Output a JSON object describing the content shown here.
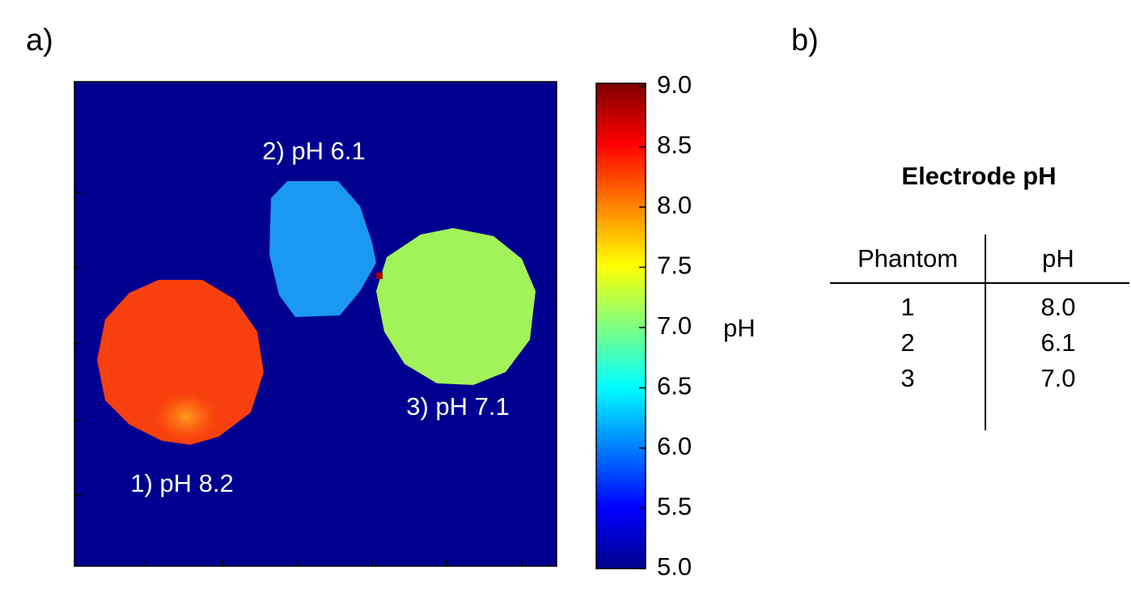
{
  "panel_a": {
    "label": "a)",
    "annotations": [
      "1) pH 8.2",
      "2) pH 6.1",
      "3) pH 7.1"
    ],
    "colorbar": {
      "label": "pH",
      "lim": [
        5,
        9
      ],
      "ticks": [
        {
          "value": 5,
          "label": "5.0"
        },
        {
          "value": 5.5,
          "label": "5.5"
        },
        {
          "value": 6,
          "label": "6.0"
        },
        {
          "value": 6.5,
          "label": "6.5"
        },
        {
          "value": 7,
          "label": "7.0"
        },
        {
          "value": 7.5,
          "label": "7.5"
        },
        {
          "value": 8,
          "label": "8.0"
        },
        {
          "value": 8.5,
          "label": "8.5"
        },
        {
          "value": 9,
          "label": "9.0"
        }
      ]
    }
  },
  "panel_b": {
    "label": "b)",
    "title": "Electrode pH",
    "table": {
      "header": [
        "Phantom",
        "pH"
      ],
      "rows": [
        [
          "1",
          "8.0"
        ],
        [
          "2",
          "6.1"
        ],
        [
          "3",
          "7.0"
        ]
      ]
    }
  }
}
